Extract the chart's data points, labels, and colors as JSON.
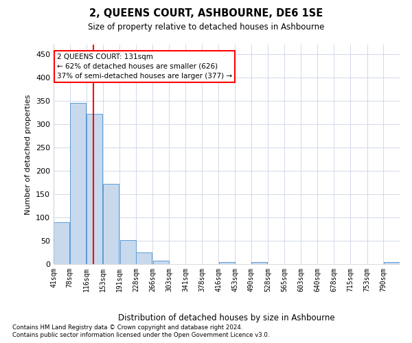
{
  "title": "2, QUEENS COURT, ASHBOURNE, DE6 1SE",
  "subtitle": "Size of property relative to detached houses in Ashbourne",
  "xlabel": "Distribution of detached houses by size in Ashbourne",
  "ylabel": "Number of detached properties",
  "bar_color": "#c8d9ed",
  "bar_edge_color": "#5b9bd5",
  "red_line_x": 131,
  "annotation_title": "2 QUEENS COURT: 131sqm",
  "annotation_line1": "← 62% of detached houses are smaller (626)",
  "annotation_line2": "37% of semi-detached houses are larger (377) →",
  "categories": [
    "41sqm",
    "78sqm",
    "116sqm",
    "153sqm",
    "191sqm",
    "228sqm",
    "266sqm",
    "303sqm",
    "341sqm",
    "378sqm",
    "416sqm",
    "453sqm",
    "490sqm",
    "528sqm",
    "565sqm",
    "603sqm",
    "640sqm",
    "678sqm",
    "715sqm",
    "753sqm",
    "790sqm"
  ],
  "bin_edges": [
    41,
    78,
    116,
    153,
    191,
    228,
    266,
    303,
    341,
    378,
    416,
    453,
    490,
    528,
    565,
    603,
    640,
    678,
    715,
    753,
    790
  ],
  "values": [
    90,
    345,
    322,
    172,
    52,
    25,
    8,
    0,
    0,
    0,
    5,
    0,
    4,
    0,
    0,
    0,
    0,
    0,
    0,
    0,
    4
  ],
  "ylim": [
    0,
    470
  ],
  "yticks": [
    0,
    50,
    100,
    150,
    200,
    250,
    300,
    350,
    400,
    450
  ],
  "footnote1": "Contains HM Land Registry data © Crown copyright and database right 2024.",
  "footnote2": "Contains public sector information licensed under the Open Government Licence v3.0.",
  "background_color": "#ffffff",
  "grid_color": "#d0d8e8",
  "fig_width": 6.0,
  "fig_height": 5.0,
  "dpi": 100
}
